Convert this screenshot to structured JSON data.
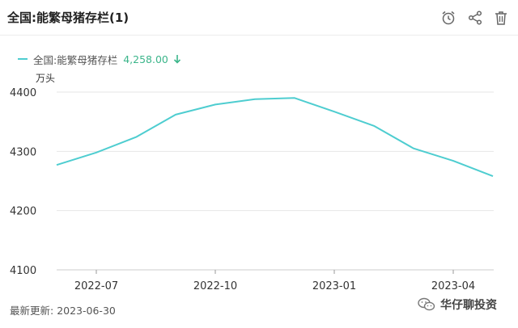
{
  "header": {
    "title": "全国:能繁母猪存栏(1)",
    "icons": [
      "alarm-clock-icon",
      "share-icon",
      "trash-icon"
    ]
  },
  "legend": {
    "label": "全国:能繁母猪存栏",
    "value": "4,258.00",
    "trend_icon": "arrow-down-icon",
    "value_color": "#3bb58a"
  },
  "footer": {
    "updated_label": "最新更新:",
    "updated_value": "2023-06-30"
  },
  "brand": {
    "name": "华仔聊投资",
    "icon": "wechat-icon"
  },
  "chart_data": {
    "type": "line",
    "ylabel": "万头",
    "ylim": [
      4100,
      4400
    ],
    "yticks": [
      4100,
      4200,
      4300,
      4400
    ],
    "xticks": [
      "2022-07",
      "2022-10",
      "2023-01",
      "2023-04"
    ],
    "grid": "horizontal",
    "series": [
      {
        "name": "全国:能繁母猪存栏",
        "color": "#4ecdd0",
        "x": [
          "2022-06",
          "2022-07",
          "2022-08",
          "2022-09",
          "2022-10",
          "2022-11",
          "2022-12",
          "2023-01",
          "2023-02",
          "2023-03",
          "2023-04",
          "2023-05"
        ],
        "values": [
          4277,
          4298,
          4324,
          4362,
          4379,
          4388,
          4390,
          4367,
          4343,
          4305,
          4284,
          4258
        ]
      }
    ]
  }
}
